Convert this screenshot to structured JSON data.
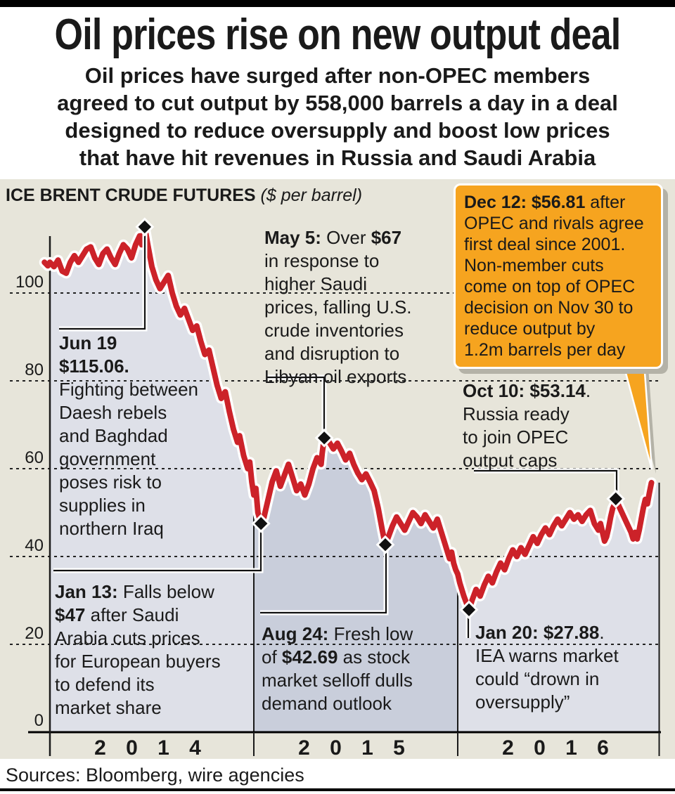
{
  "header": {
    "title": "Oil prices rise on new output deal",
    "subtitle": "Oil prices have surged after non-OPEC members\nagreed to cut output by 558,000 barrels a day in a deal\ndesigned to reduce oversupply and boost low prices\nthat have hit revenues in Russia and Saudi Arabia"
  },
  "chart_header": {
    "name": "ICE BRENT CRUDE FUTURES",
    "unit": "($ per barrel)"
  },
  "sources": "Sources: Bloomberg, wire agencies",
  "colors": {
    "line_red": "#cc2229",
    "casing_white": "#ffffff",
    "fill_2014": "#dee0e8",
    "fill_2015": "#c9cedb",
    "fill_2016": "#dee0e8",
    "background_beige": "#e7e5da",
    "bubble_orange": "#f6a41f",
    "bubble_shadow": "#b4b2a7",
    "axis_black": "#1a1a1a"
  },
  "annotations": {
    "jun19": "**Jun 19\n$115.06.**\nFighting between\nDaesh rebels\nand Baghdad\ngovernment\nposes risk to\nsupplies in\nnorthern Iraq",
    "jan13": "**Jan 13:** Falls below\n**$47** after Saudi\nArabia cuts prices\nfor European buyers\nto defend its\nmarket share",
    "may5": "**May 5:** Over **$67**\nin response to\nhigher Saudi\nprices, falling U.S.\ncrude inventories\nand disruption to\nLibyan oil exports",
    "aug24": "**Aug 24:** Fresh low\nof **$42.69** as stock\nmarket selloff dulls\ndemand outlook",
    "oct10": "**Oct 10: $53.14**.\nRussia ready\nto join OPEC\noutput caps",
    "jan20": "**Jan 20: $27.88**.\nIEA warns market\ncould “drown in\noversupply”",
    "dec12": "**Dec 12: $56.81** after\nOPEC and rivals agree\nfirst deal since 2001.\nNon-member cuts\ncome on top of OPEC\ndecision on Nov 30 to\nreduce output by\n1.2m barrels per day"
  },
  "chart_data": {
    "type": "line",
    "title": "ICE BRENT CRUDE FUTURES",
    "ylabel": "$ per barrel",
    "ylim": [
      0,
      120
    ],
    "yticks": [
      0,
      20,
      40,
      60,
      80,
      100
    ],
    "xticks": [
      2014,
      2015,
      2016,
      2016.988
    ],
    "year_labels": [
      "2 0 1 4",
      "2 0 1 5",
      "2 0 1 6"
    ],
    "grid": "dotted-horizontal",
    "markers": [
      {
        "id": "jun19",
        "label": "Jun 19",
        "t": 2014.465,
        "value": 115.06,
        "diamond": true
      },
      {
        "id": "jan13",
        "label": "Jan 13",
        "t": 2015.035,
        "value": 47.5,
        "diamond": true
      },
      {
        "id": "may5",
        "label": "May 5",
        "t": 2015.345,
        "value": 67.0,
        "diamond": true
      },
      {
        "id": "aug24",
        "label": "Aug 24",
        "t": 2015.645,
        "value": 42.69,
        "diamond": true
      },
      {
        "id": "jan20",
        "label": "Jan 20",
        "t": 2016.055,
        "value": 27.88,
        "diamond": true
      },
      {
        "id": "oct10",
        "label": "Oct 10",
        "t": 2016.775,
        "value": 53.14,
        "diamond": true
      },
      {
        "id": "dec12",
        "label": "Dec 12",
        "t": 2016.95,
        "value": 56.81,
        "diamond": false
      }
    ],
    "year_bands": [
      {
        "from": 2014.0,
        "to": 2015.0,
        "color": "#dee0e8"
      },
      {
        "from": 2015.0,
        "to": 2016.0,
        "color": "#c9cedb"
      },
      {
        "from": 2016.0,
        "to": 2016.988,
        "color": "#dee0e8"
      }
    ],
    "dividers": [
      {
        "t": 2015.0,
        "v": 54.0
      },
      {
        "t": 2016.0,
        "v": 36.0
      },
      {
        "t": 2016.988,
        "v": 56.81
      }
    ],
    "series": [
      {
        "name": "Brent crude ($/barrel)",
        "points": [
          [
            2013.973,
            107.0
          ],
          [
            2013.99,
            106.2
          ],
          [
            2014.0,
            107.0
          ],
          [
            2014.02,
            106.0
          ],
          [
            2014.04,
            107.5
          ],
          [
            2014.06,
            105.0
          ],
          [
            2014.08,
            104.5
          ],
          [
            2014.1,
            107.0
          ],
          [
            2014.12,
            108.5
          ],
          [
            2014.14,
            107.0
          ],
          [
            2014.16,
            108.5
          ],
          [
            2014.18,
            110.0
          ],
          [
            2014.2,
            110.5
          ],
          [
            2014.22,
            108.0
          ],
          [
            2014.24,
            106.5
          ],
          [
            2014.26,
            109.0
          ],
          [
            2014.28,
            110.0
          ],
          [
            2014.3,
            108.0
          ],
          [
            2014.32,
            106.5
          ],
          [
            2014.34,
            109.0
          ],
          [
            2014.36,
            111.0
          ],
          [
            2014.38,
            110.0
          ],
          [
            2014.4,
            108.0
          ],
          [
            2014.42,
            111.0
          ],
          [
            2014.44,
            113.0
          ],
          [
            2014.45,
            111.0
          ],
          [
            2014.465,
            115.06
          ],
          [
            2014.48,
            111.0
          ],
          [
            2014.5,
            106.0
          ],
          [
            2014.52,
            103.0
          ],
          [
            2014.54,
            101.0
          ],
          [
            2014.56,
            102.5
          ],
          [
            2014.58,
            104.0
          ],
          [
            2014.6,
            100.0
          ],
          [
            2014.62,
            97.0
          ],
          [
            2014.64,
            95.0
          ],
          [
            2014.66,
            96.5
          ],
          [
            2014.68,
            94.0
          ],
          [
            2014.7,
            91.5
          ],
          [
            2014.72,
            92.5
          ],
          [
            2014.74,
            89.0
          ],
          [
            2014.76,
            86.0
          ],
          [
            2014.78,
            87.0
          ],
          [
            2014.8,
            83.0
          ],
          [
            2014.82,
            79.0
          ],
          [
            2014.84,
            76.0
          ],
          [
            2014.86,
            77.5
          ],
          [
            2014.88,
            73.0
          ],
          [
            2014.9,
            69.0
          ],
          [
            2014.92,
            66.0
          ],
          [
            2014.93,
            67.5
          ],
          [
            2014.95,
            63.0
          ],
          [
            2014.97,
            60.0
          ],
          [
            2014.98,
            61.5
          ],
          [
            2014.99,
            57.0
          ],
          [
            2015.0,
            54.0
          ],
          [
            2015.01,
            55.5
          ],
          [
            2015.02,
            50.0
          ],
          [
            2015.035,
            47.5
          ],
          [
            2015.05,
            49.0
          ],
          [
            2015.07,
            53.0
          ],
          [
            2015.09,
            57.0
          ],
          [
            2015.11,
            59.5
          ],
          [
            2015.13,
            56.0
          ],
          [
            2015.15,
            58.5
          ],
          [
            2015.17,
            61.0
          ],
          [
            2015.19,
            58.0
          ],
          [
            2015.21,
            55.0
          ],
          [
            2015.23,
            56.5
          ],
          [
            2015.25,
            54.0
          ],
          [
            2015.27,
            56.5
          ],
          [
            2015.29,
            60.0
          ],
          [
            2015.31,
            62.5
          ],
          [
            2015.33,
            61.0
          ],
          [
            2015.335,
            63.5
          ],
          [
            2015.345,
            67.0
          ],
          [
            2015.37,
            66.0
          ],
          [
            2015.39,
            64.5
          ],
          [
            2015.41,
            65.8
          ],
          [
            2015.43,
            64.0
          ],
          [
            2015.45,
            62.0
          ],
          [
            2015.47,
            63.5
          ],
          [
            2015.49,
            61.0
          ],
          [
            2015.51,
            59.0
          ],
          [
            2015.53,
            57.5
          ],
          [
            2015.55,
            58.8
          ],
          [
            2015.57,
            57.0
          ],
          [
            2015.59,
            55.0
          ],
          [
            2015.61,
            51.0
          ],
          [
            2015.63,
            46.0
          ],
          [
            2015.645,
            42.69
          ],
          [
            2015.66,
            44.5
          ],
          [
            2015.68,
            47.0
          ],
          [
            2015.7,
            49.0
          ],
          [
            2015.72,
            47.5
          ],
          [
            2015.74,
            46.0
          ],
          [
            2015.76,
            48.0
          ],
          [
            2015.78,
            50.0
          ],
          [
            2015.8,
            49.0
          ],
          [
            2015.82,
            47.5
          ],
          [
            2015.84,
            49.5
          ],
          [
            2015.86,
            48.0
          ],
          [
            2015.88,
            46.5
          ],
          [
            2015.9,
            48.5
          ],
          [
            2015.91,
            47.0
          ],
          [
            2015.93,
            44.0
          ],
          [
            2015.95,
            41.0
          ],
          [
            2015.96,
            39.5
          ],
          [
            2015.97,
            41.0
          ],
          [
            2015.98,
            38.5
          ],
          [
            2015.99,
            37.0
          ],
          [
            2016.0,
            36.0
          ],
          [
            2016.01,
            34.0
          ],
          [
            2016.03,
            31.0
          ],
          [
            2016.055,
            27.88
          ],
          [
            2016.07,
            30.0
          ],
          [
            2016.09,
            32.5
          ],
          [
            2016.11,
            31.0
          ],
          [
            2016.13,
            33.5
          ],
          [
            2016.15,
            35.5
          ],
          [
            2016.17,
            34.0
          ],
          [
            2016.19,
            36.5
          ],
          [
            2016.21,
            38.5
          ],
          [
            2016.23,
            37.0
          ],
          [
            2016.25,
            39.5
          ],
          [
            2016.27,
            41.5
          ],
          [
            2016.29,
            40.0
          ],
          [
            2016.31,
            42.0
          ],
          [
            2016.33,
            40.5
          ],
          [
            2016.35,
            42.5
          ],
          [
            2016.37,
            44.5
          ],
          [
            2016.39,
            43.0
          ],
          [
            2016.41,
            45.0
          ],
          [
            2016.43,
            46.5
          ],
          [
            2016.45,
            45.0
          ],
          [
            2016.47,
            47.0
          ],
          [
            2016.49,
            48.5
          ],
          [
            2016.51,
            47.0
          ],
          [
            2016.53,
            48.5
          ],
          [
            2016.55,
            50.0
          ],
          [
            2016.57,
            48.5
          ],
          [
            2016.59,
            49.5
          ],
          [
            2016.61,
            48.0
          ],
          [
            2016.63,
            49.5
          ],
          [
            2016.65,
            50.5
          ],
          [
            2016.66,
            49.0
          ],
          [
            2016.67,
            47.5
          ],
          [
            2016.69,
            46.0
          ],
          [
            2016.7,
            47.5
          ],
          [
            2016.71,
            45.5
          ],
          [
            2016.72,
            43.5
          ],
          [
            2016.73,
            44.5
          ],
          [
            2016.74,
            46.5
          ],
          [
            2016.75,
            49.0
          ],
          [
            2016.76,
            51.0
          ],
          [
            2016.77,
            52.0
          ],
          [
            2016.775,
            53.14
          ],
          [
            2016.79,
            51.5
          ],
          [
            2016.81,
            49.5
          ],
          [
            2016.83,
            47.5
          ],
          [
            2016.85,
            45.5
          ],
          [
            2016.86,
            44.0
          ],
          [
            2016.87,
            45.5
          ],
          [
            2016.88,
            44.0
          ],
          [
            2016.89,
            46.0
          ],
          [
            2016.9,
            48.5
          ],
          [
            2016.91,
            51.0
          ],
          [
            2016.92,
            53.0
          ],
          [
            2016.93,
            52.0
          ],
          [
            2016.94,
            54.5
          ],
          [
            2016.95,
            56.81
          ]
        ]
      }
    ]
  }
}
